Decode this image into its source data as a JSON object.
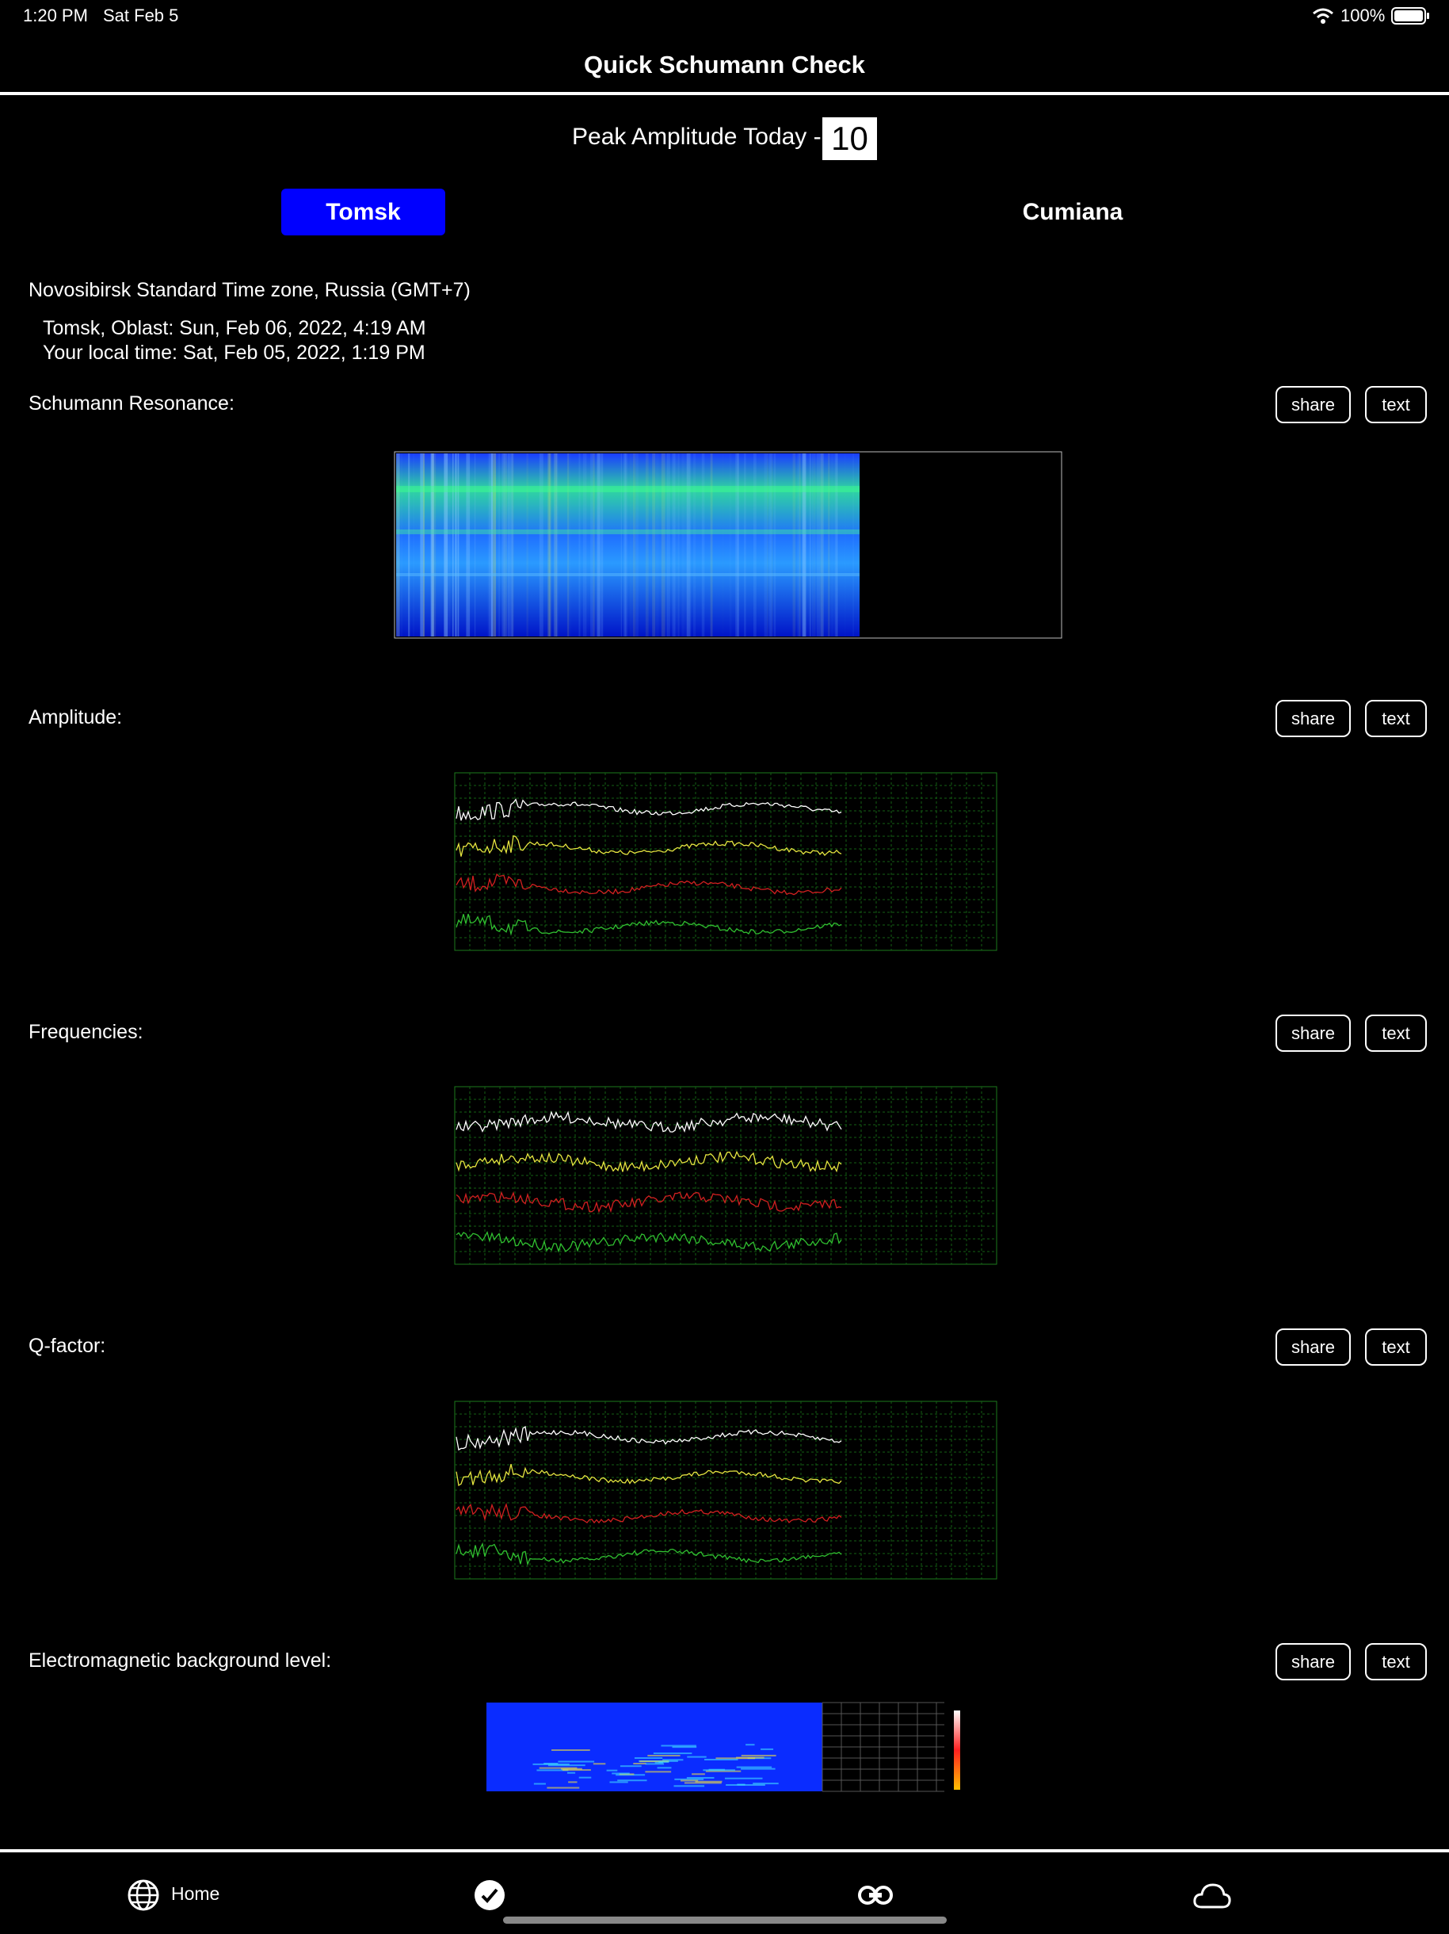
{
  "status_bar": {
    "time": "1:20 PM",
    "date": "Sat Feb 5",
    "battery": "100%"
  },
  "header": {
    "title": "Quick Schumann Check"
  },
  "peak": {
    "label": "Peak Amplitude Today -",
    "value": "10"
  },
  "tabs": [
    "Tomsk",
    "Cumiana"
  ],
  "timezone": "Novosibirsk Standard Time zone, Russia (GMT+7)",
  "location_time": "Tomsk, Oblast: Sun, Feb 06, 2022, 4:19 AM",
  "local_time": "Your local time: Sat, Feb 05, 2022, 1:19 PM",
  "sections": [
    {
      "label": "Schumann Resonance:",
      "buttons": [
        "share",
        "text"
      ]
    },
    {
      "label": "Amplitude:",
      "buttons": [
        "share",
        "text"
      ]
    },
    {
      "label": "Frequencies:",
      "buttons": [
        "share",
        "text"
      ]
    },
    {
      "label": "Q-factor:",
      "buttons": [
        "share",
        "text"
      ]
    },
    {
      "label": "Electromagnetic background level:",
      "buttons": [
        "share",
        "text"
      ]
    }
  ],
  "tab_bar": {
    "home": "Home"
  }
}
